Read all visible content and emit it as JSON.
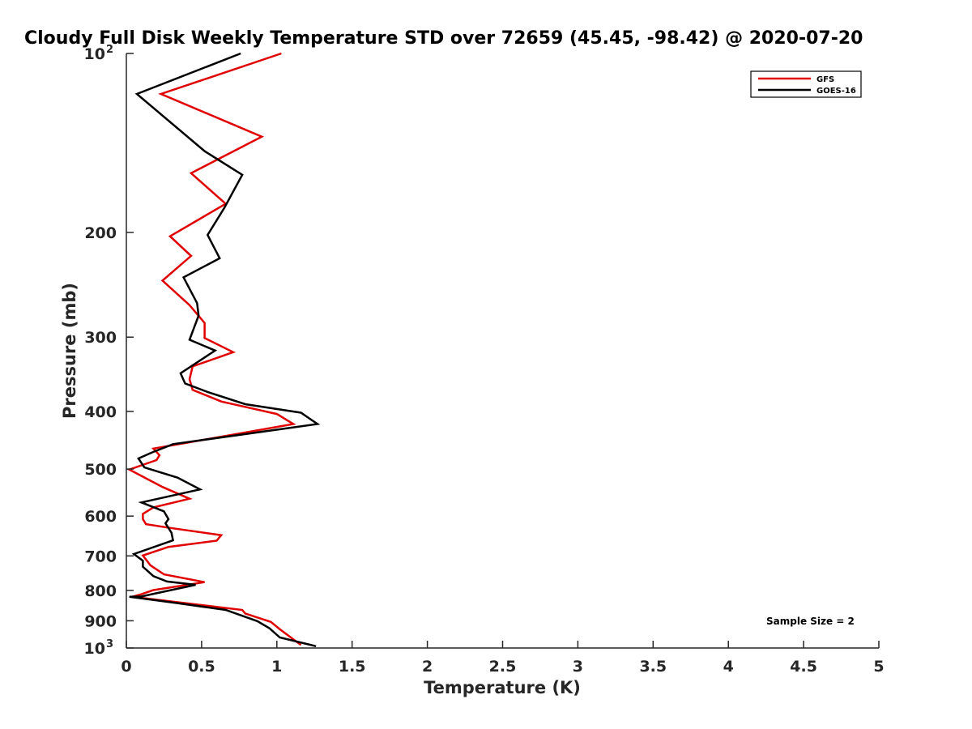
{
  "chart_data": {
    "type": "line",
    "title": "Cloudy Full Disk Weekly Temperature STD over 72659 (45.45, -98.42) @ 2020-07-20",
    "xlabel": "Temperature (K)",
    "ylabel": "Pressure (mb)",
    "xlim": [
      0,
      5
    ],
    "ylim": [
      100,
      1000
    ],
    "y_scale": "log",
    "y_reversed": true,
    "x_ticks": [
      "0",
      "0.5",
      "1",
      "1.5",
      "2",
      "2.5",
      "3",
      "3.5",
      "4",
      "4.5",
      "5"
    ],
    "y_ticks": [
      {
        "value": 100,
        "label": "10",
        "sup": "2"
      },
      {
        "value": 200,
        "label": "200",
        "sup": ""
      },
      {
        "value": 300,
        "label": "300",
        "sup": ""
      },
      {
        "value": 400,
        "label": "400",
        "sup": ""
      },
      {
        "value": 500,
        "label": "500",
        "sup": ""
      },
      {
        "value": 600,
        "label": "600",
        "sup": ""
      },
      {
        "value": 700,
        "label": "700",
        "sup": ""
      },
      {
        "value": 800,
        "label": "800",
        "sup": ""
      },
      {
        "value": 900,
        "label": "900",
        "sup": ""
      },
      {
        "value": 1000,
        "label": "10",
        "sup": "3"
      }
    ],
    "grid": false,
    "legend_position": "top-right",
    "series": [
      {
        "name": "GFS",
        "color": "#e00000",
        "points": [
          [
            1.03,
            100
          ],
          [
            0.23,
            117
          ],
          [
            0.9,
            138
          ],
          [
            0.43,
            159
          ],
          [
            0.66,
            179
          ],
          [
            0.29,
            203
          ],
          [
            0.43,
            219
          ],
          [
            0.24,
            241
          ],
          [
            0.42,
            265
          ],
          [
            0.52,
            284
          ],
          [
            0.52,
            301
          ],
          [
            0.71,
            318
          ],
          [
            0.44,
            336
          ],
          [
            0.42,
            353
          ],
          [
            0.44,
            368
          ],
          [
            0.63,
            385
          ],
          [
            1.0,
            404
          ],
          [
            1.11,
            420
          ],
          [
            0.18,
            462
          ],
          [
            0.22,
            474
          ],
          [
            0.2,
            483
          ],
          [
            0.02,
            501
          ],
          [
            0.24,
            536
          ],
          [
            0.42,
            561
          ],
          [
            0.18,
            580
          ],
          [
            0.11,
            595
          ],
          [
            0.11,
            607
          ],
          [
            0.13,
            619
          ],
          [
            0.27,
            627
          ],
          [
            0.63,
            646
          ],
          [
            0.6,
            660
          ],
          [
            0.28,
            676
          ],
          [
            0.11,
            699
          ],
          [
            0.16,
            726
          ],
          [
            0.25,
            752
          ],
          [
            0.52,
            775
          ],
          [
            0.18,
            799
          ],
          [
            0.1,
            812
          ],
          [
            0.04,
            820
          ],
          [
            0.77,
            863
          ],
          [
            0.79,
            875
          ],
          [
            0.96,
            904
          ],
          [
            1.02,
            930
          ],
          [
            1.16,
            988
          ]
        ]
      },
      {
        "name": "GOES-16",
        "color": "#000000",
        "points": [
          [
            0.76,
            100
          ],
          [
            0.07,
            117
          ],
          [
            0.52,
            146
          ],
          [
            0.77,
            160
          ],
          [
            0.65,
            182
          ],
          [
            0.54,
            202
          ],
          [
            0.62,
            221
          ],
          [
            0.38,
            238
          ],
          [
            0.47,
            263
          ],
          [
            0.48,
            276
          ],
          [
            0.42,
            303
          ],
          [
            0.59,
            316
          ],
          [
            0.36,
            345
          ],
          [
            0.39,
            359
          ],
          [
            0.54,
            371
          ],
          [
            0.79,
            389
          ],
          [
            1.16,
            402
          ],
          [
            1.27,
            420
          ],
          [
            0.31,
            454
          ],
          [
            0.17,
            469
          ],
          [
            0.08,
            480
          ],
          [
            0.12,
            497
          ],
          [
            0.34,
            517
          ],
          [
            0.49,
            541
          ],
          [
            0.1,
            569
          ],
          [
            0.25,
            589
          ],
          [
            0.28,
            607
          ],
          [
            0.26,
            617
          ],
          [
            0.3,
            640
          ],
          [
            0.31,
            659
          ],
          [
            0.05,
            695
          ],
          [
            0.11,
            713
          ],
          [
            0.11,
            730
          ],
          [
            0.18,
            757
          ],
          [
            0.27,
            773
          ],
          [
            0.46,
            783
          ],
          [
            0.1,
            819
          ],
          [
            0.02,
            820
          ],
          [
            0.33,
            840
          ],
          [
            0.66,
            863
          ],
          [
            0.87,
            901
          ],
          [
            0.95,
            926
          ],
          [
            1.02,
            960
          ],
          [
            1.26,
            993
          ]
        ]
      }
    ],
    "annotations": [
      "Sample Size = 2"
    ]
  }
}
